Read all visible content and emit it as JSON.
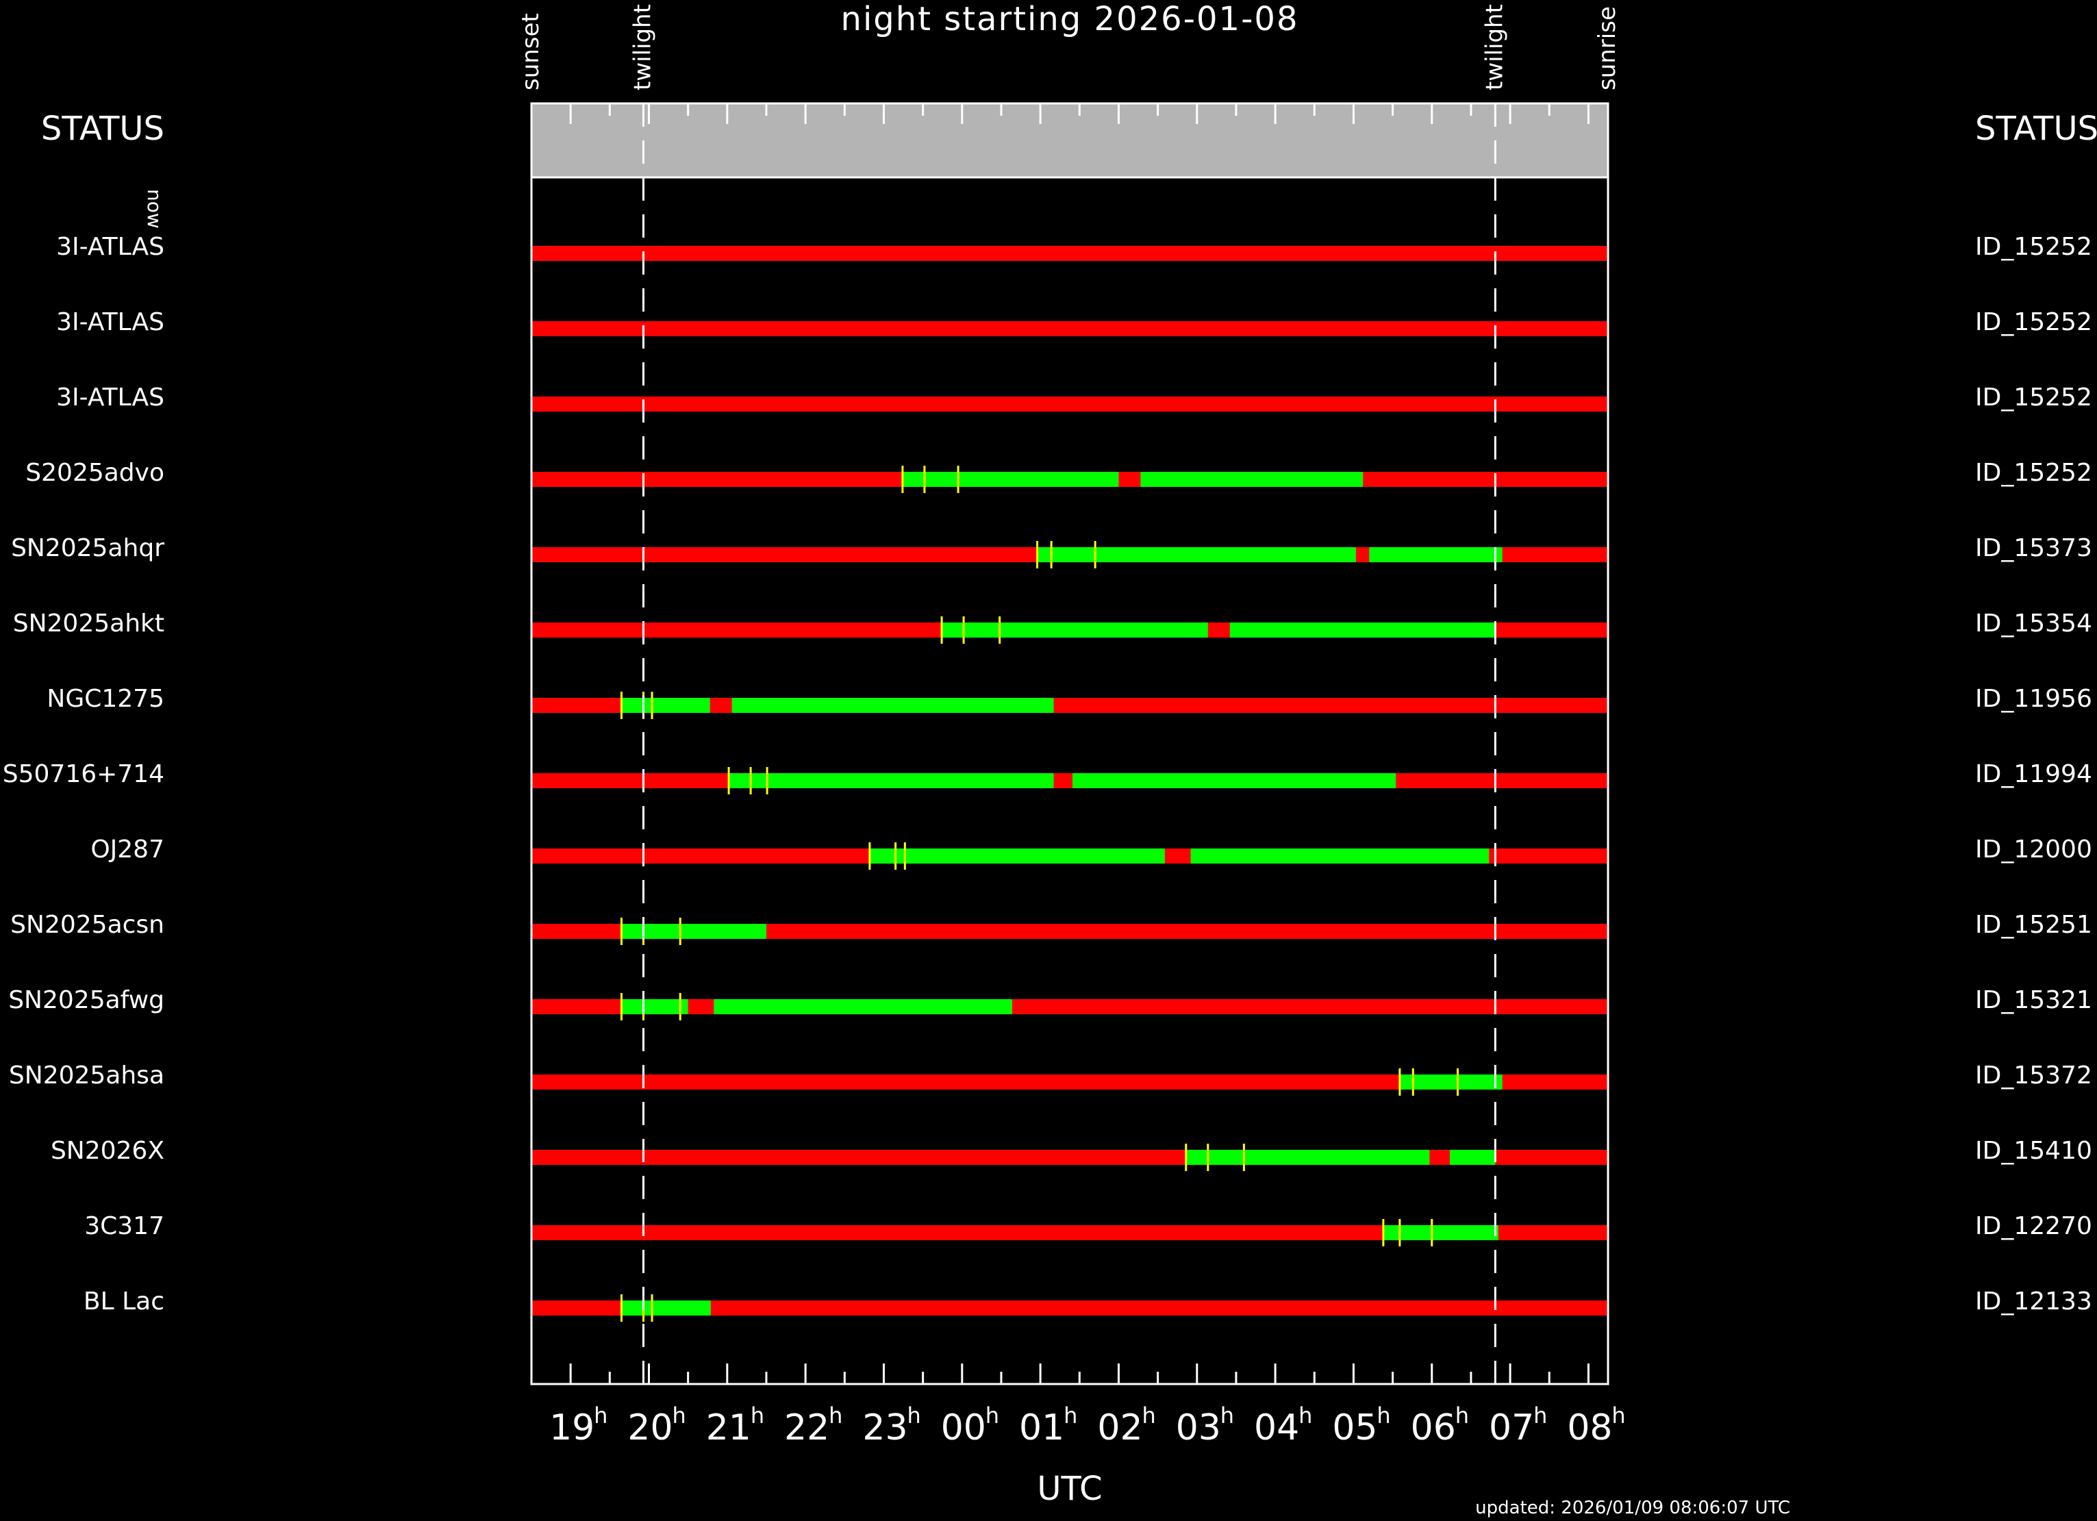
{
  "chart_data": {
    "type": "gantt",
    "title": "night starting 2026-01-08",
    "xlabel": "UTC",
    "updated": "updated: 2026/01/09 08:06:07 UTC",
    "left_header": "STATUS",
    "right_header": "STATUS",
    "now_label": "now",
    "x_unit": "hours UTC since 18:00",
    "xlim": [
      18.5,
      32.25
    ],
    "ticks": [
      {
        "h": 19,
        "label": "19"
      },
      {
        "h": 20,
        "label": "20"
      },
      {
        "h": 21,
        "label": "21"
      },
      {
        "h": 22,
        "label": "22"
      },
      {
        "h": 23,
        "label": "23"
      },
      {
        "h": 24,
        "label": "00"
      },
      {
        "h": 25,
        "label": "01"
      },
      {
        "h": 26,
        "label": "02"
      },
      {
        "h": 27,
        "label": "03"
      },
      {
        "h": 28,
        "label": "04"
      },
      {
        "h": 29,
        "label": "05"
      },
      {
        "h": 30,
        "label": "06"
      },
      {
        "h": 31,
        "label": "07"
      },
      {
        "h": 32,
        "label": "08"
      }
    ],
    "markers": [
      {
        "label": "sunset",
        "h": 18.5
      },
      {
        "label": "twilight",
        "h": 19.93
      },
      {
        "label": "twilight",
        "h": 30.81
      },
      {
        "label": "sunrise",
        "h": 32.25
      }
    ],
    "twilight_lines": [
      19.93,
      30.81
    ],
    "colors": {
      "bad": "#ff0000",
      "good": "#00ff00",
      "tick": "#ffff00",
      "band": "#b4b4b4",
      "now": "#0000ff"
    },
    "targets": [
      {
        "name": "3I-ATLAS",
        "id": "ID_15252",
        "good": [],
        "ticks": []
      },
      {
        "name": "3I-ATLAS",
        "id": "ID_15252",
        "good": [],
        "ticks": []
      },
      {
        "name": "3I-ATLAS",
        "id": "ID_15252",
        "good": [],
        "ticks": []
      },
      {
        "name": "S2025advo",
        "id": "ID_15252",
        "good": [
          [
            23.24,
            26.0
          ],
          [
            26.28,
            29.12
          ]
        ],
        "ticks": [
          23.24,
          23.52,
          23.95
        ]
      },
      {
        "name": "SN2025ahqr",
        "id": "ID_15373",
        "good": [
          [
            24.96,
            29.03
          ],
          [
            29.2,
            30.9
          ]
        ],
        "ticks": [
          24.96,
          25.14,
          25.7
        ]
      },
      {
        "name": "SN2025ahkt",
        "id": "ID_15354",
        "good": [
          [
            23.74,
            27.14
          ],
          [
            27.42,
            30.81
          ]
        ],
        "ticks": [
          23.74,
          24.02,
          24.48
        ]
      },
      {
        "name": "NGC1275",
        "id": "ID_11956",
        "good": [
          [
            19.65,
            20.78
          ],
          [
            21.06,
            25.17
          ]
        ],
        "ticks": [
          19.65,
          19.93,
          20.04
        ]
      },
      {
        "name": "S50716+714",
        "id": "ID_11994",
        "good": [
          [
            21.02,
            25.17
          ],
          [
            25.41,
            29.54
          ]
        ],
        "ticks": [
          21.02,
          21.3,
          21.51
        ]
      },
      {
        "name": "OJ287",
        "id": "ID_12000",
        "good": [
          [
            22.82,
            26.59
          ],
          [
            26.92,
            30.73
          ]
        ],
        "ticks": [
          22.82,
          23.15,
          23.27
        ]
      },
      {
        "name": "SN2025acsn",
        "id": "ID_15251",
        "good": [
          [
            19.65,
            21.5
          ]
        ],
        "ticks": [
          19.65,
          19.93,
          20.4
        ]
      },
      {
        "name": "SN2025afwg",
        "id": "ID_15321",
        "good": [
          [
            19.65,
            20.5
          ],
          [
            20.83,
            24.64
          ]
        ],
        "ticks": [
          19.65,
          19.93,
          20.4
        ]
      },
      {
        "name": "SN2025ahsa",
        "id": "ID_15372",
        "good": [
          [
            29.59,
            30.9
          ]
        ],
        "ticks": [
          29.59,
          29.76,
          30.33
        ]
      },
      {
        "name": "SN2026X",
        "id": "ID_15410",
        "good": [
          [
            26.86,
            29.97
          ],
          [
            30.23,
            30.81
          ]
        ],
        "ticks": [
          26.86,
          27.14,
          27.6
        ]
      },
      {
        "name": "3C317",
        "id": "ID_12270",
        "good": [
          [
            29.38,
            30.85
          ]
        ],
        "ticks": [
          29.38,
          29.59,
          30.0
        ]
      },
      {
        "name": "BL Lac",
        "id": "ID_12133",
        "good": [
          [
            19.65,
            20.79
          ]
        ],
        "ticks": [
          19.65,
          19.93,
          20.04
        ]
      }
    ]
  }
}
